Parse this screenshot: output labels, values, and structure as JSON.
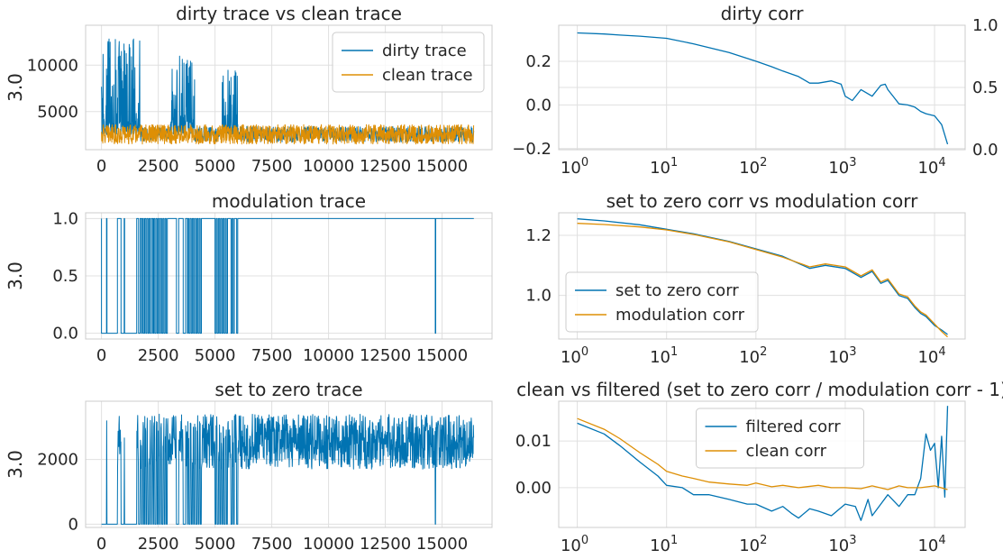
{
  "colors": {
    "blue": "#0173b2",
    "orange": "#de8f05"
  },
  "chart_data": [
    {
      "id": "p1",
      "type": "line",
      "title": "dirty trace vs clean trace",
      "ylabel": "3.0",
      "xlim": [
        -700,
        17200
      ],
      "ylim": [
        900,
        14300
      ],
      "xticks": [
        0,
        2500,
        5000,
        7500,
        10000,
        12500,
        15000
      ],
      "xtick_labels": [
        "0",
        "2500",
        "5000",
        "7500",
        "10000",
        "12500",
        "15000"
      ],
      "yticks": [
        5000,
        10000
      ],
      "ytick_labels": [
        "5000",
        "10000"
      ],
      "legend": "top-right",
      "series": [
        {
          "name": "dirty trace",
          "color": "#0173b2",
          "kind": "noise",
          "segments": [
            {
              "x0": 0,
              "x1": 1700,
              "lo": 2500,
              "hi": 13500,
              "step": 10
            },
            {
              "x0": 1700,
              "x1": 3000,
              "lo": 1800,
              "hi": 3300,
              "step": 14
            },
            {
              "x0": 3000,
              "x1": 4100,
              "lo": 2500,
              "hi": 11000,
              "step": 10
            },
            {
              "x0": 4100,
              "x1": 5300,
              "lo": 1800,
              "hi": 3400,
              "step": 14
            },
            {
              "x0": 5300,
              "x1": 6000,
              "lo": 2500,
              "hi": 9700,
              "step": 10
            },
            {
              "x0": 6000,
              "x1": 16400,
              "lo": 1700,
              "hi": 3400,
              "step": 16
            }
          ]
        },
        {
          "name": "clean trace",
          "color": "#de8f05",
          "kind": "noise",
          "segments": [
            {
              "x0": 0,
              "x1": 16400,
              "lo": 1500,
              "hi": 3600,
              "step": 12
            }
          ]
        }
      ]
    },
    {
      "id": "p2",
      "type": "line",
      "title": "dirty corr",
      "ylabel": "",
      "xscale": "log",
      "xlim": [
        0.62,
        22000
      ],
      "ylim": [
        -0.205,
        0.365
      ],
      "xticks": [
        1,
        10,
        100,
        1000,
        10000
      ],
      "xtick_labels": [
        "0",
        "1",
        "2",
        "3",
        "4"
      ],
      "yticks": [
        -0.2,
        0.0,
        0.2
      ],
      "ytick_labels": [
        "−0.2",
        "0.0",
        "0.2"
      ],
      "y2lim": [
        0,
        1
      ],
      "y2ticks": [
        0,
        0.5,
        1.0
      ],
      "y2tick_labels": [
        "0.0",
        "0.5",
        "1.0"
      ],
      "series": [
        {
          "name": "",
          "color": "#0173b2",
          "x": [
            1,
            2,
            3,
            5,
            10,
            20,
            50,
            100,
            150,
            200,
            300,
            400,
            500,
            700,
            900,
            1000,
            1200,
            1500,
            2000,
            2500,
            2800,
            3000,
            3500,
            4000,
            5000,
            6000,
            7000,
            8000,
            10000,
            12000,
            14000
          ],
          "y": [
            0.33,
            0.325,
            0.32,
            0.315,
            0.305,
            0.28,
            0.24,
            0.2,
            0.175,
            0.155,
            0.13,
            0.1,
            0.1,
            0.11,
            0.095,
            0.04,
            0.02,
            0.07,
            0.04,
            0.09,
            0.095,
            0.07,
            0.035,
            0.005,
            0.0,
            -0.01,
            -0.03,
            -0.04,
            -0.05,
            -0.09,
            -0.18
          ]
        }
      ]
    },
    {
      "id": "p3",
      "type": "line",
      "title": "modulation trace",
      "ylabel": "3.0",
      "xlim": [
        -700,
        17200
      ],
      "ylim": [
        -0.05,
        1.05
      ],
      "xticks": [
        0,
        2500,
        5000,
        7500,
        10000,
        12500,
        15000
      ],
      "xtick_labels": [
        "0",
        "2500",
        "5000",
        "7500",
        "10000",
        "12500",
        "15000"
      ],
      "yticks": [
        0,
        0.5,
        1.0
      ],
      "ytick_labels": [
        "0.0",
        "0.5",
        "1.0"
      ],
      "series": [
        {
          "name": "",
          "color": "#0173b2",
          "kind": "binary",
          "base": 1,
          "x_end": 16400,
          "zero_intervals": [
            [
              0,
              220
            ],
            [
              240,
              700
            ],
            [
              860,
              1000
            ],
            [
              1020,
              1550
            ],
            [
              1630,
              1700
            ],
            [
              1760,
              1800
            ],
            [
              1850,
              1900
            ],
            [
              1950,
              2000
            ],
            [
              2050,
              2100
            ],
            [
              2150,
              2200
            ],
            [
              2260,
              2300
            ],
            [
              2350,
              2400
            ],
            [
              2450,
              2500
            ],
            [
              2550,
              2600
            ],
            [
              2650,
              2700
            ],
            [
              2750,
              2800
            ],
            [
              2850,
              2900
            ],
            [
              3300,
              3400
            ],
            [
              3600,
              3700
            ],
            [
              3780,
              3800
            ],
            [
              3850,
              3900
            ],
            [
              3950,
              4000
            ],
            [
              4050,
              4100
            ],
            [
              4150,
              4200
            ],
            [
              4250,
              4300
            ],
            [
              4350,
              4400
            ],
            [
              5000,
              5050
            ],
            [
              5100,
              5150
            ],
            [
              5200,
              5250
            ],
            [
              5300,
              5350
            ],
            [
              5400,
              5450
            ],
            [
              5500,
              5550
            ],
            [
              5700,
              5750
            ],
            [
              5800,
              5850
            ],
            [
              5950,
              6000
            ],
            [
              14700,
              14720
            ]
          ]
        }
      ]
    },
    {
      "id": "p4",
      "type": "line",
      "title": "set to zero corr vs modulation corr",
      "ylabel": "",
      "xscale": "log",
      "xlim": [
        0.62,
        22000
      ],
      "ylim": [
        0.855,
        1.275
      ],
      "xticks": [
        1,
        10,
        100,
        1000,
        10000
      ],
      "xtick_labels": [
        "0",
        "1",
        "2",
        "3",
        "4"
      ],
      "yticks": [
        1.0,
        1.2
      ],
      "ytick_labels": [
        "1.0",
        "1.2"
      ],
      "legend": "lower-left",
      "series": [
        {
          "name": "set to zero corr",
          "color": "#0173b2",
          "x": [
            1,
            2,
            5,
            10,
            20,
            50,
            100,
            200,
            400,
            600,
            1000,
            1500,
            2000,
            2500,
            3000,
            4000,
            5000,
            6000,
            7000,
            8000,
            10000,
            12000,
            14000
          ],
          "y": [
            1.255,
            1.248,
            1.235,
            1.22,
            1.205,
            1.18,
            1.155,
            1.13,
            1.09,
            1.1,
            1.09,
            1.06,
            1.08,
            1.04,
            1.05,
            1.0,
            0.99,
            0.96,
            0.94,
            0.93,
            0.9,
            0.885,
            0.87
          ]
        },
        {
          "name": "modulation corr",
          "color": "#de8f05",
          "x": [
            1,
            2,
            5,
            10,
            20,
            50,
            100,
            200,
            400,
            600,
            1000,
            1500,
            2000,
            2500,
            3000,
            4000,
            5000,
            6000,
            7000,
            8000,
            10000,
            12000,
            14000
          ],
          "y": [
            1.24,
            1.236,
            1.228,
            1.218,
            1.203,
            1.178,
            1.153,
            1.127,
            1.095,
            1.105,
            1.095,
            1.065,
            1.085,
            1.045,
            1.055,
            1.005,
            0.995,
            0.965,
            0.945,
            0.935,
            0.905,
            0.88,
            0.862
          ]
        }
      ]
    },
    {
      "id": "p5",
      "type": "line",
      "title": "set to zero trace",
      "ylabel": "3.0",
      "xlim": [
        -700,
        17200
      ],
      "ylim": [
        -100,
        3800
      ],
      "xticks": [
        0,
        2500,
        5000,
        7500,
        10000,
        12500,
        15000
      ],
      "xtick_labels": [
        "0",
        "2500",
        "5000",
        "7500",
        "10000",
        "12500",
        "15000"
      ],
      "yticks": [
        0,
        2000
      ],
      "ytick_labels": [
        "0",
        "2000"
      ],
      "series": [
        {
          "name": "",
          "color": "#0173b2",
          "kind": "gated",
          "lo": 1700,
          "hi": 3400,
          "step": 12,
          "x_end": 16400,
          "mask_ref": "p3"
        }
      ]
    },
    {
      "id": "p6",
      "type": "line",
      "title": "clean vs filtered (set to zero corr / modulation corr - 1)",
      "ylabel": "",
      "xscale": "log",
      "xlim": [
        0.62,
        22000
      ],
      "ylim": [
        -0.0085,
        0.0185
      ],
      "xticks": [
        1,
        10,
        100,
        1000,
        10000
      ],
      "xtick_labels": [
        "0",
        "1",
        "2",
        "3",
        "4"
      ],
      "yticks": [
        0.0,
        0.01
      ],
      "ytick_labels": [
        "0.00",
        "0.01"
      ],
      "legend": "top-center",
      "series": [
        {
          "name": "filtered corr",
          "color": "#0173b2",
          "x": [
            1,
            2,
            3,
            5,
            8,
            10,
            15,
            20,
            30,
            50,
            80,
            100,
            150,
            200,
            250,
            300,
            400,
            500,
            700,
            1000,
            1300,
            1500,
            1800,
            2000,
            2500,
            3000,
            4000,
            5000,
            6000,
            7000,
            8000,
            9000,
            10000,
            11000,
            12000,
            13000,
            14000
          ],
          "y": [
            0.0138,
            0.0115,
            0.009,
            0.0055,
            0.0025,
            0.0005,
            0.0,
            -0.0015,
            -0.0015,
            -0.0025,
            -0.0035,
            -0.0035,
            -0.005,
            -0.004,
            -0.0055,
            -0.0065,
            -0.0045,
            -0.005,
            -0.006,
            -0.0035,
            -0.004,
            -0.007,
            -0.0025,
            -0.006,
            -0.0035,
            -0.0015,
            -0.004,
            -0.0015,
            -0.0015,
            0.002,
            0.0115,
            0.008,
            0.0095,
            0.0,
            0.011,
            -0.002,
            0.0175
          ]
        },
        {
          "name": "clean corr",
          "color": "#de8f05",
          "x": [
            1,
            2,
            3,
            5,
            8,
            10,
            15,
            20,
            30,
            50,
            80,
            100,
            150,
            200,
            300,
            500,
            700,
            1000,
            1500,
            2000,
            3000,
            4000,
            5000,
            7000,
            10000,
            14000
          ],
          "y": [
            0.0148,
            0.0125,
            0.0105,
            0.0075,
            0.005,
            0.0035,
            0.0025,
            0.002,
            0.0012,
            0.0008,
            0.0005,
            0.001,
            0.0002,
            0.0005,
            0.0,
            0.0005,
            0.0,
            0.0,
            -0.0002,
            0.0004,
            -0.0004,
            0.0004,
            0.0,
            0.0,
            0.0004,
            -0.0004
          ]
        }
      ]
    }
  ]
}
